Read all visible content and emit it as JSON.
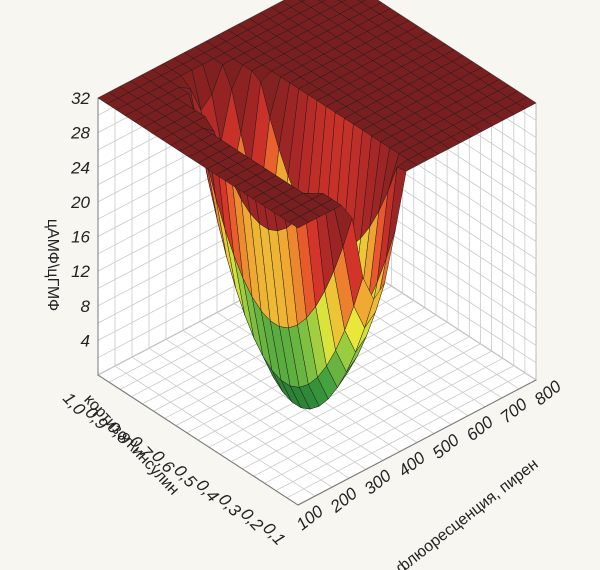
{
  "chart_data": {
    "type": "surface3d",
    "title": "",
    "zlabel": "цАМФ\\цГМФ",
    "ylabel": "кортизол\\инсулин",
    "xlabel": "флюоресценция, пирен",
    "x_ticks": [
      "100",
      "200",
      "300",
      "400",
      "500",
      "600",
      "700",
      "800"
    ],
    "y_ticks": [
      "0,1",
      "0,2",
      "0,3",
      "0,4",
      "0,5",
      "0,6",
      "0,7",
      "0,8",
      "0,9",
      "1,0"
    ],
    "z_ticks": [
      "4",
      "8",
      "12",
      "16",
      "20",
      "24",
      "28",
      "32"
    ],
    "xlim": [
      100,
      800
    ],
    "ylim": [
      0.1,
      1.0
    ],
    "zlim": [
      0,
      32
    ],
    "z_cap": 32,
    "grid": true,
    "colormap": [
      {
        "z": 0,
        "color": "#1f6b2e"
      },
      {
        "z": 6,
        "color": "#3a9a3e"
      },
      {
        "z": 11,
        "color": "#86c542"
      },
      {
        "z": 15,
        "color": "#e8e83a"
      },
      {
        "z": 19,
        "color": "#f0a531"
      },
      {
        "z": 23,
        "color": "#e53a2a"
      },
      {
        "z": 27,
        "color": "#a62626"
      },
      {
        "z": 32,
        "color": "#7a1f1f"
      }
    ]
  }
}
